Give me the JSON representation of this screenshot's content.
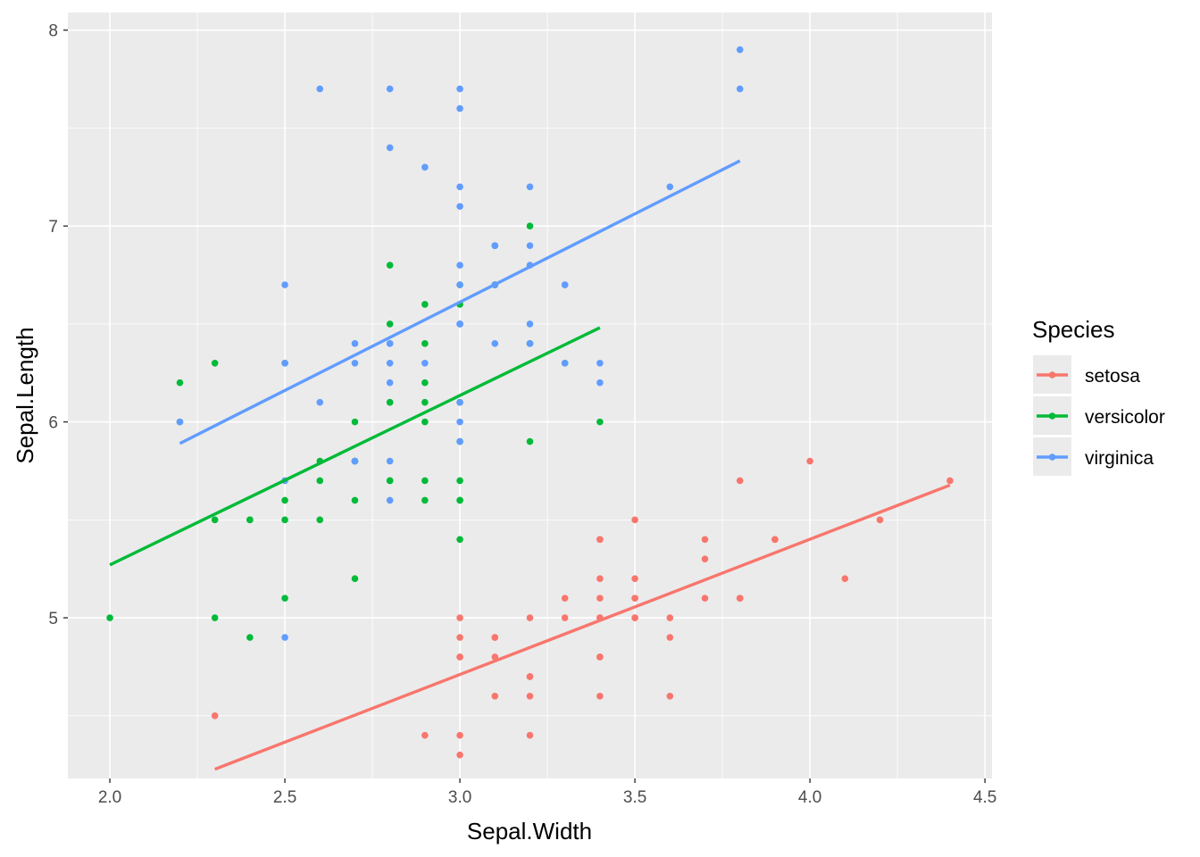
{
  "chart_data": {
    "type": "scatter",
    "xlabel": "Sepal.Width",
    "ylabel": "Sepal.Length",
    "xlim": [
      1.88,
      4.52
    ],
    "ylim": [
      4.18,
      8.09
    ],
    "x_ticks": [
      "2.0",
      "2.5",
      "3.0",
      "3.5",
      "4.0",
      "4.5"
    ],
    "y_ticks": [
      "5",
      "6",
      "7",
      "8"
    ],
    "grid": true,
    "smooth": "linear regression per species",
    "legend": {
      "title": "Species",
      "position": "right"
    },
    "series": [
      {
        "name": "setosa",
        "color": "#F8766D",
        "points": [
          [
            3.5,
            5.1
          ],
          [
            3.0,
            4.9
          ],
          [
            3.2,
            4.7
          ],
          [
            3.1,
            4.6
          ],
          [
            3.6,
            5.0
          ],
          [
            3.9,
            5.4
          ],
          [
            3.4,
            4.6
          ],
          [
            3.4,
            5.0
          ],
          [
            2.9,
            4.4
          ],
          [
            3.1,
            4.9
          ],
          [
            3.7,
            5.4
          ],
          [
            3.4,
            4.8
          ],
          [
            3.0,
            4.8
          ],
          [
            3.0,
            4.3
          ],
          [
            4.0,
            5.8
          ],
          [
            4.4,
            5.7
          ],
          [
            3.9,
            5.4
          ],
          [
            3.5,
            5.1
          ],
          [
            3.8,
            5.7
          ],
          [
            3.8,
            5.1
          ],
          [
            3.4,
            5.4
          ],
          [
            3.7,
            5.1
          ],
          [
            3.6,
            4.6
          ],
          [
            3.3,
            5.1
          ],
          [
            3.4,
            4.8
          ],
          [
            3.0,
            5.0
          ],
          [
            3.4,
            5.0
          ],
          [
            3.5,
            5.2
          ],
          [
            3.4,
            5.2
          ],
          [
            3.2,
            4.7
          ],
          [
            3.1,
            4.8
          ],
          [
            3.4,
            5.4
          ],
          [
            4.1,
            5.2
          ],
          [
            4.2,
            5.5
          ],
          [
            3.1,
            4.9
          ],
          [
            3.2,
            5.0
          ],
          [
            3.5,
            5.5
          ],
          [
            3.6,
            4.9
          ],
          [
            3.0,
            4.4
          ],
          [
            3.4,
            5.1
          ],
          [
            3.5,
            5.0
          ],
          [
            2.3,
            4.5
          ],
          [
            3.2,
            4.4
          ],
          [
            3.5,
            5.0
          ],
          [
            3.8,
            5.1
          ],
          [
            3.0,
            4.8
          ],
          [
            3.8,
            5.1
          ],
          [
            3.2,
            4.6
          ],
          [
            3.7,
            5.3
          ],
          [
            3.3,
            5.0
          ]
        ]
      },
      {
        "name": "versicolor",
        "color": "#00BA38",
        "points": [
          [
            3.2,
            7.0
          ],
          [
            3.2,
            6.4
          ],
          [
            3.1,
            6.9
          ],
          [
            2.3,
            5.5
          ],
          [
            2.8,
            6.5
          ],
          [
            2.8,
            5.7
          ],
          [
            3.3,
            6.3
          ],
          [
            2.4,
            4.9
          ],
          [
            2.9,
            6.6
          ],
          [
            2.7,
            5.2
          ],
          [
            2.0,
            5.0
          ],
          [
            3.0,
            5.9
          ],
          [
            2.2,
            6.0
          ],
          [
            2.9,
            6.1
          ],
          [
            2.9,
            5.6
          ],
          [
            3.1,
            6.7
          ],
          [
            3.0,
            5.6
          ],
          [
            2.7,
            5.8
          ],
          [
            2.2,
            6.2
          ],
          [
            2.5,
            5.6
          ],
          [
            3.2,
            5.9
          ],
          [
            2.8,
            6.1
          ],
          [
            2.5,
            6.3
          ],
          [
            2.8,
            6.1
          ],
          [
            2.9,
            6.4
          ],
          [
            3.0,
            6.6
          ],
          [
            2.8,
            6.8
          ],
          [
            3.0,
            6.7
          ],
          [
            2.9,
            6.0
          ],
          [
            2.6,
            5.7
          ],
          [
            2.4,
            5.5
          ],
          [
            2.4,
            5.5
          ],
          [
            2.7,
            5.8
          ],
          [
            2.7,
            6.0
          ],
          [
            3.0,
            5.4
          ],
          [
            3.4,
            6.0
          ],
          [
            3.1,
            6.7
          ],
          [
            2.3,
            6.3
          ],
          [
            3.0,
            5.6
          ],
          [
            2.5,
            5.5
          ],
          [
            2.6,
            5.5
          ],
          [
            3.0,
            6.1
          ],
          [
            2.6,
            5.8
          ],
          [
            2.3,
            5.0
          ],
          [
            2.7,
            5.6
          ],
          [
            3.0,
            5.7
          ],
          [
            2.9,
            5.7
          ],
          [
            2.9,
            6.2
          ],
          [
            2.5,
            5.1
          ],
          [
            2.8,
            5.7
          ]
        ]
      },
      {
        "name": "virginica",
        "color": "#619CFF",
        "points": [
          [
            3.3,
            6.3
          ],
          [
            2.7,
            5.8
          ],
          [
            3.0,
            7.1
          ],
          [
            2.9,
            6.3
          ],
          [
            3.0,
            6.5
          ],
          [
            3.0,
            7.6
          ],
          [
            2.5,
            4.9
          ],
          [
            2.9,
            7.3
          ],
          [
            2.5,
            6.7
          ],
          [
            3.6,
            7.2
          ],
          [
            3.2,
            6.5
          ],
          [
            2.7,
            6.4
          ],
          [
            3.0,
            6.8
          ],
          [
            2.5,
            5.7
          ],
          [
            2.8,
            5.8
          ],
          [
            3.2,
            6.4
          ],
          [
            3.0,
            6.5
          ],
          [
            3.8,
            7.7
          ],
          [
            2.6,
            7.7
          ],
          [
            2.2,
            6.0
          ],
          [
            3.2,
            6.9
          ],
          [
            2.8,
            5.6
          ],
          [
            2.8,
            7.7
          ],
          [
            2.7,
            6.3
          ],
          [
            3.3,
            6.7
          ],
          [
            3.2,
            7.2
          ],
          [
            2.8,
            6.2
          ],
          [
            3.0,
            6.1
          ],
          [
            2.8,
            6.4
          ],
          [
            3.0,
            7.2
          ],
          [
            2.8,
            7.4
          ],
          [
            3.8,
            7.9
          ],
          [
            2.8,
            6.4
          ],
          [
            2.8,
            6.3
          ],
          [
            2.6,
            6.1
          ],
          [
            3.0,
            7.7
          ],
          [
            3.4,
            6.3
          ],
          [
            3.1,
            6.4
          ],
          [
            3.0,
            6.0
          ],
          [
            3.1,
            6.9
          ],
          [
            3.1,
            6.7
          ],
          [
            3.1,
            6.9
          ],
          [
            2.7,
            5.8
          ],
          [
            3.2,
            6.8
          ],
          [
            3.3,
            6.7
          ],
          [
            3.0,
            6.7
          ],
          [
            2.5,
            6.3
          ],
          [
            3.0,
            6.5
          ],
          [
            3.4,
            6.2
          ],
          [
            3.0,
            5.9
          ]
        ]
      }
    ]
  }
}
